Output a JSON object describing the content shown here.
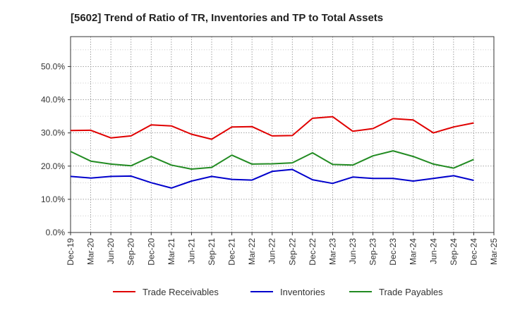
{
  "chart_data": {
    "type": "line",
    "title": "[5602]  Trend of Ratio of TR, Inventories and TP to Total Assets",
    "xlabel": "",
    "ylabel": "",
    "x": [
      "Dec-19",
      "Mar-20",
      "Jun-20",
      "Sep-20",
      "Dec-20",
      "Mar-21",
      "Jun-21",
      "Sep-21",
      "Dec-21",
      "Mar-22",
      "Jun-22",
      "Sep-22",
      "Dec-22",
      "Mar-23",
      "Jun-23",
      "Sep-23",
      "Dec-23",
      "Mar-24",
      "Jun-24",
      "Sep-24",
      "Dec-24",
      "Mar-25"
    ],
    "yticks": [
      "0.0%",
      "10.0%",
      "20.0%",
      "30.0%",
      "40.0%",
      "50.0%"
    ],
    "ylim": [
      0,
      59
    ],
    "grid": true,
    "legend_position": "bottom",
    "series": [
      {
        "name": "Trade Receivables",
        "color": "#e00000",
        "values": [
          30.7,
          30.8,
          28.5,
          29.1,
          32.4,
          32.1,
          29.6,
          28.1,
          31.8,
          31.9,
          29.1,
          29.2,
          34.4,
          34.9,
          30.5,
          31.3,
          34.3,
          33.9,
          30.0,
          31.8,
          33.0,
          null
        ]
      },
      {
        "name": "Inventories",
        "color": "#0000cc",
        "values": [
          16.9,
          16.4,
          16.9,
          17.0,
          15.0,
          13.4,
          15.5,
          16.9,
          16.0,
          15.8,
          18.4,
          19.0,
          15.9,
          14.8,
          16.7,
          16.3,
          16.3,
          15.5,
          16.3,
          17.1,
          15.7,
          null
        ]
      },
      {
        "name": "Trade Payables",
        "color": "#228b22",
        "values": [
          24.4,
          21.5,
          20.6,
          20.1,
          22.9,
          20.3,
          19.1,
          19.6,
          23.3,
          20.6,
          20.7,
          21.0,
          24.0,
          20.5,
          20.3,
          23.1,
          24.6,
          22.9,
          20.6,
          19.4,
          22.0,
          null
        ]
      }
    ]
  }
}
